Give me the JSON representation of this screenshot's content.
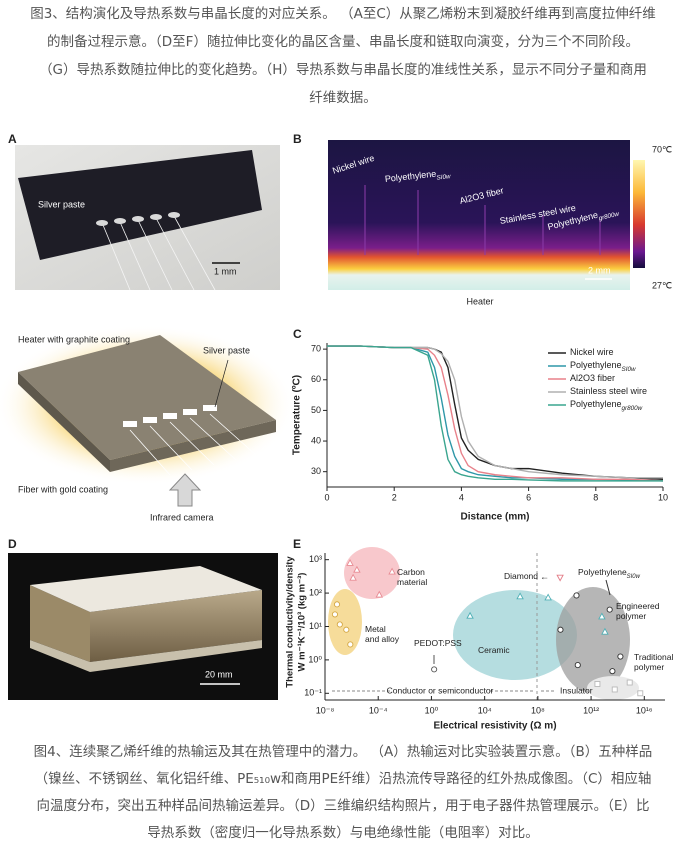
{
  "caption_top": [
    "图3、结构演化及导热系数与串晶长度的对应关系。 （A至C）从聚乙烯粉末到凝胶纤维再到高度拉伸纤维",
    "的制备过程示意。（D至F）随拉伸比变化的晶区含量、串晶长度和链取向演变，分为三个不同阶段。",
    "（G）导热系数随拉伸比的变化趋势。（H）导热系数与串晶长度的准线性关系，显示不同分子量和商用",
    "纤维数据。"
  ],
  "panels": {
    "A": {
      "label": "A",
      "silver_paste": "Silver paste",
      "scale": "1 mm",
      "heater": "Heater with graphite coating",
      "silver_paste_2": "Silver paste",
      "fiber": "Fiber with gold coating",
      "camera": "Infrared camera"
    },
    "B": {
      "label": "B",
      "wire_1": "Nickel wire",
      "wire_2": "Polyethylene",
      "wire_2_sub": "SI0w",
      "wire_3": "Al2O3 fiber",
      "wire_4": "Stainless steel wire",
      "wire_5": "Polyethylene",
      "wire_5_sub": "gr800w",
      "scale": "2 mm",
      "heater": "Heater",
      "temp_max": "70℃",
      "temp_min": "27℃"
    },
    "C": {
      "label": "C"
    },
    "D": {
      "label": "D",
      "scale": "20 mm"
    },
    "E": {
      "label": "E"
    }
  },
  "chart_data": [
    {
      "type": "line",
      "xlabel": "Distance (mm)",
      "ylabel": "Temperature (ºC)",
      "x": [
        0,
        1,
        2,
        2.5,
        3,
        3.2,
        3.4,
        3.6,
        3.8,
        4,
        4.2,
        4.5,
        5,
        5.5,
        6,
        7,
        8,
        9,
        10
      ],
      "series": [
        {
          "name": "Nickel wire",
          "color": "#222222",
          "values": [
            71,
            71,
            70.5,
            70.5,
            70.5,
            70,
            69,
            64,
            52,
            41,
            37,
            34,
            32,
            31,
            31,
            29.5,
            28.5,
            28,
            27.5
          ]
        },
        {
          "name": "Polyethylene",
          "sub": "SI0w",
          "color": "#2e97a8",
          "values": [
            71,
            71,
            70.5,
            70.5,
            69,
            64,
            54,
            42,
            35,
            31,
            30,
            29,
            28.5,
            28,
            28,
            27.5,
            27.5,
            27.3,
            27
          ]
        },
        {
          "name": "Al2O3 fiber",
          "color": "#e8818a",
          "values": [
            71,
            71,
            70.5,
            70.5,
            70,
            68,
            64,
            55,
            44,
            36,
            32,
            30,
            29,
            28.5,
            28,
            28,
            27.5,
            27.5,
            27
          ]
        },
        {
          "name": "Stainless steel wire",
          "color": "#b0b0b0",
          "values": [
            71,
            71,
            70.5,
            70.5,
            70.5,
            70,
            68.5,
            66,
            60,
            48,
            40,
            35,
            32,
            31,
            30,
            29,
            28.5,
            28,
            28
          ]
        },
        {
          "name": "Polyethylene",
          "sub": "gr800w",
          "color": "#3aa58f",
          "values": [
            71,
            71,
            70.5,
            70.5,
            68,
            60,
            45,
            34,
            30,
            29,
            28.5,
            28,
            27.5,
            27.5,
            27.3,
            27,
            27,
            27,
            27
          ]
        }
      ],
      "xlim": [
        0,
        10
      ],
      "ylim": [
        25,
        72
      ],
      "xticks": [
        0,
        2,
        4,
        6,
        8,
        10
      ],
      "yticks": [
        30,
        40,
        50,
        60,
        70
      ]
    },
    {
      "type": "scatter",
      "xscale": "log",
      "yscale": "log",
      "xlabel": "Electrical resistivity (Ω m)",
      "ylabel": [
        "Thermal conductivity/density",
        "W m⁻¹K⁻¹/10³ (kg m⁻³)"
      ],
      "xlim": [
        1e-08,
        3.6e+17
      ],
      "ylim": [
        0.063,
        1585
      ],
      "xticks": [
        {
          "value": 1e-08,
          "label": "10⁻⁸"
        },
        {
          "value": 0.0001,
          "label": "10⁻⁴"
        },
        {
          "value": 1,
          "label": "10⁰"
        },
        {
          "value": 10000.0,
          "label": "10⁴"
        },
        {
          "value": 100000000.0,
          "label": "10⁸"
        },
        {
          "value": 1000000000000.0,
          "label": "10¹²"
        },
        {
          "value": 1e+16,
          "label": "10¹⁶"
        }
      ],
      "yticks": [
        {
          "value": 0.1,
          "label": "10⁻¹"
        },
        {
          "value": 1,
          "label": "10⁰"
        },
        {
          "value": 10,
          "label": "10¹"
        },
        {
          "value": 100,
          "label": "10²"
        },
        {
          "value": 1000,
          "label": "10³"
        }
      ],
      "series": [
        {
          "name": "Carbon material",
          "marker": "triangle",
          "color": "#e88c94",
          "x": [
            7.6e-07,
            2.5e-06,
            1.3e-06,
            0.0011,
            0.00012
          ],
          "values": [
            800,
            500,
            290,
            440,
            90
          ]
        },
        {
          "name": "Metal and alloy",
          "marker": "circle",
          "color": "#d4a845",
          "x": [
            8e-08,
            1.3e-07,
            4e-07,
            8e-07,
            5.6e-08
          ],
          "values": [
            46,
            11.5,
            8,
            2.9,
            23
          ]
        },
        {
          "name": "Ceramic",
          "marker": "triangle",
          "color": "#4fb0b6",
          "x": [
            800,
            4600000.0,
            590000000.0,
            6500000000000.0,
            11000000000000.0
          ],
          "values": [
            21,
            80,
            74,
            20,
            7
          ]
        },
        {
          "name": "Diamond",
          "marker": "triangle-down",
          "color": "#e37d88",
          "x": [
            4700000000.0
          ],
          "values": [
            290
          ]
        },
        {
          "name": "PEDOT:PSS",
          "marker": "circle",
          "color": "#555555",
          "x": [
            1.6
          ],
          "values": [
            0.52
          ]
        },
        {
          "name": "Polyethylene",
          "sub": "SI0w",
          "marker": "circle",
          "color": "#333333",
          "x": [
            80000000000.0,
            5000000000.0,
            100000000000.0,
            25000000000000.0,
            40000000000000.0,
            160000000000000.0
          ],
          "values": [
            85,
            8,
            0.7,
            32,
            0.46,
            1.26
          ]
        },
        {
          "name": "Traditional polymer",
          "marker": "square",
          "color": "#b8b8b8",
          "x": [
            3000000000000.0,
            60000000000000.0,
            800000000000000.0,
            5000000000000000.0
          ],
          "values": [
            0.19,
            0.13,
            0.21,
            0.1
          ]
        }
      ],
      "annotations": {
        "engineered": "Engineered polymer",
        "conductor": "Conductor or semiconductor",
        "insulator": "Insulator"
      }
    }
  ],
  "caption_bottom": [
    "图4、连续聚乙烯纤维的热输运及其在热管理中的潜力。 （A）热输运对比实验装置示意。（B）五种样品",
    "（镍丝、不锈钢丝、氧化铝纤维、PE₅₁₀w和商用PE纤维）沿热流传导路径的红外热成像图。（C）相应轴",
    "向温度分布，突出五种样品间热输运差异。（D）三维编织结构照片，用于电子器件热管理展示。（E）比",
    "导热系数（密度归一化导热系数）与电绝缘性能（电阻率）对比。"
  ]
}
